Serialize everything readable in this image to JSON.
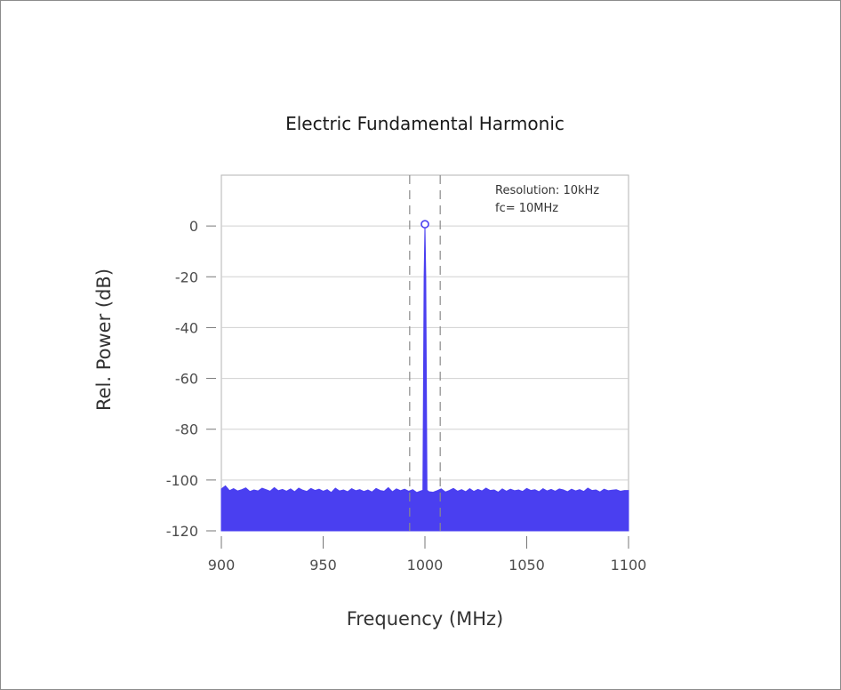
{
  "chart_data": {
    "type": "area",
    "title": "Electric Fundamental Harmonic",
    "xlabel": "Frequency (MHz)",
    "ylabel": "Rel. Power (dB)",
    "xlim": [
      900,
      1100
    ],
    "ylim": [
      -120,
      20
    ],
    "x_ticks": [
      900,
      950,
      1000,
      1050,
      1100
    ],
    "x_tick_labels": [
      "900",
      "950",
      "1000",
      "1050",
      "1100"
    ],
    "y_ticks": [
      0,
      -20,
      -40,
      -60,
      -80,
      -100,
      -120
    ],
    "y_tick_labels": [
      "0",
      "-20",
      "-40",
      "-60",
      "-80",
      "-100",
      "-120"
    ],
    "grid": "horizontal",
    "series": [
      {
        "color": "#4a3ff0",
        "baseline": -120,
        "points": [
          [
            900,
            -103.5
          ],
          [
            902,
            -102.3
          ],
          [
            904,
            -104.2
          ],
          [
            906,
            -103.4
          ],
          [
            908,
            -104.3
          ],
          [
            910,
            -103.8
          ],
          [
            912,
            -103.1
          ],
          [
            914,
            -104.5
          ],
          [
            916,
            -103.9
          ],
          [
            918,
            -104.3
          ],
          [
            920,
            -103.2
          ],
          [
            922,
            -103.8
          ],
          [
            924,
            -104.4
          ],
          [
            926,
            -103.0
          ],
          [
            928,
            -104.2
          ],
          [
            930,
            -103.7
          ],
          [
            932,
            -104.4
          ],
          [
            934,
            -103.5
          ],
          [
            936,
            -104.6
          ],
          [
            938,
            -103.2
          ],
          [
            940,
            -104.0
          ],
          [
            942,
            -104.5
          ],
          [
            944,
            -103.3
          ],
          [
            946,
            -104.1
          ],
          [
            948,
            -103.6
          ],
          [
            950,
            -104.4
          ],
          [
            952,
            -103.8
          ],
          [
            954,
            -104.9
          ],
          [
            956,
            -103.2
          ],
          [
            958,
            -104.3
          ],
          [
            960,
            -103.9
          ],
          [
            962,
            -104.6
          ],
          [
            964,
            -103.4
          ],
          [
            966,
            -104.2
          ],
          [
            968,
            -103.8
          ],
          [
            970,
            -104.5
          ],
          [
            972,
            -103.9
          ],
          [
            974,
            -104.7
          ],
          [
            976,
            -103.3
          ],
          [
            978,
            -104.1
          ],
          [
            980,
            -104.4
          ],
          [
            982,
            -103.0
          ],
          [
            984,
            -104.6
          ],
          [
            986,
            -103.5
          ],
          [
            988,
            -104.2
          ],
          [
            990,
            -103.6
          ],
          [
            992,
            -104.4
          ],
          [
            994,
            -103.8
          ],
          [
            996,
            -104.9
          ],
          [
            998,
            -104.3
          ],
          [
            999,
            -104.0
          ],
          [
            999.6,
            -20
          ],
          [
            1000,
            0
          ],
          [
            1000.4,
            -20
          ],
          [
            1001,
            -104.0
          ],
          [
            1002,
            -104.6
          ],
          [
            1004,
            -104.8
          ],
          [
            1006,
            -104.2
          ],
          [
            1008,
            -103.5
          ],
          [
            1010,
            -104.7
          ],
          [
            1012,
            -104.1
          ],
          [
            1014,
            -103.3
          ],
          [
            1016,
            -104.4
          ],
          [
            1018,
            -103.8
          ],
          [
            1020,
            -104.6
          ],
          [
            1022,
            -103.4
          ],
          [
            1024,
            -104.5
          ],
          [
            1026,
            -103.7
          ],
          [
            1028,
            -104.3
          ],
          [
            1030,
            -103.2
          ],
          [
            1032,
            -104.1
          ],
          [
            1034,
            -103.9
          ],
          [
            1036,
            -104.8
          ],
          [
            1038,
            -103.5
          ],
          [
            1040,
            -104.4
          ],
          [
            1042,
            -103.6
          ],
          [
            1044,
            -104.2
          ],
          [
            1046,
            -103.9
          ],
          [
            1048,
            -104.5
          ],
          [
            1050,
            -103.3
          ],
          [
            1052,
            -104.1
          ],
          [
            1054,
            -103.8
          ],
          [
            1056,
            -104.6
          ],
          [
            1058,
            -103.4
          ],
          [
            1060,
            -104.3
          ],
          [
            1062,
            -103.7
          ],
          [
            1064,
            -104.4
          ],
          [
            1066,
            -103.5
          ],
          [
            1068,
            -103.9
          ],
          [
            1070,
            -104.6
          ],
          [
            1072,
            -103.6
          ],
          [
            1074,
            -104.3
          ],
          [
            1076,
            -103.8
          ],
          [
            1078,
            -104.5
          ],
          [
            1080,
            -103.2
          ],
          [
            1082,
            -104.1
          ],
          [
            1084,
            -103.9
          ],
          [
            1086,
            -104.7
          ],
          [
            1088,
            -103.6
          ],
          [
            1090,
            -104.2
          ],
          [
            1092,
            -104.0
          ],
          [
            1094,
            -103.8
          ],
          [
            1096,
            -104.4
          ],
          [
            1098,
            -104.1
          ],
          [
            1100,
            -104.1
          ]
        ]
      }
    ],
    "peak_marker": {
      "x": 1000,
      "y": 0
    },
    "reference_lines": [
      {
        "x": 992.5,
        "style": "dashed"
      },
      {
        "x": 1007.5,
        "style": "dashed"
      }
    ],
    "annotations": [
      "Resolution: 10kHz",
      "fc= 10MHz"
    ]
  }
}
